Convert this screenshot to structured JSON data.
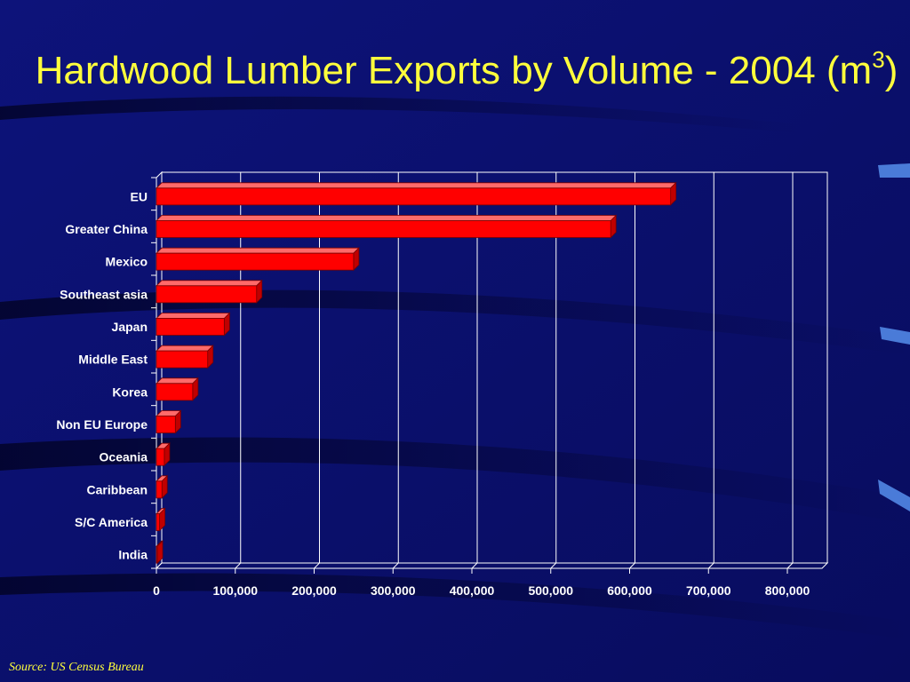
{
  "title": {
    "main": "Hardwood Lumber Exports by Volume - 2004 (m",
    "superscript": "3",
    "suffix": ")"
  },
  "source": "Source: US Census Bureau",
  "colors": {
    "background": "#0b1070",
    "title": "#ffff3c",
    "bar": "#ff0000",
    "grid": "#ffffff",
    "text": "#ffffff"
  },
  "chart_data": {
    "type": "bar",
    "orientation": "horizontal",
    "categories": [
      "EU",
      "Greater China",
      "Mexico",
      "Southeast asia",
      "Japan",
      "Middle East",
      "Korea",
      "Non EU Europe",
      "Oceania",
      "Caribbean",
      "S/C America",
      "India"
    ],
    "values": [
      652000,
      576000,
      250000,
      127000,
      86000,
      65000,
      46000,
      24000,
      10000,
      7000,
      4000,
      1000
    ],
    "xlim": [
      0,
      850000
    ],
    "xticks": [
      0,
      100000,
      200000,
      300000,
      400000,
      500000,
      600000,
      700000,
      800000
    ],
    "xtick_labels": [
      "0",
      "100,000",
      "200,000",
      "300,000",
      "400,000",
      "500,000",
      "600,000",
      "700,000",
      "800,000"
    ],
    "grid": true,
    "style": "3d",
    "legend": "none"
  }
}
